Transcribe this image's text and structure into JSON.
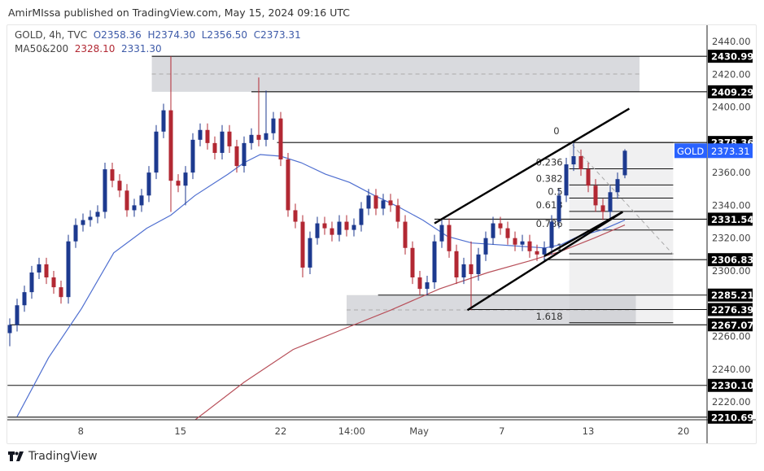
{
  "header": {
    "published": "AmirMIssa published on TradingView.com, May 15, 2024 09:16 UTC"
  },
  "legend": {
    "symbol": "GOLD, 4h, TVC",
    "open": "O2358.36",
    "high": "H2374.30",
    "low": "L2356.50",
    "close": "C2373.31",
    "ma_label": "MA50&200",
    "ma50": "2328.10",
    "ma200": "2331.30"
  },
  "footer": {
    "brand": "TradingView",
    "logo_icon": "tradingview-logo-icon"
  },
  "colors": {
    "up": "#1d3a8f",
    "down": "#b22833",
    "ma50": "#4f6fd0",
    "ma200": "#b8505a",
    "price_tag": "#2962ff"
  },
  "chart_data": {
    "type": "candlestick",
    "symbol": "GOLD",
    "timeframe": "4h",
    "ylim": [
      2205,
      2450
    ],
    "y_ticks": [
      "2440.00",
      "2420.00",
      "2400.00",
      "2360.00",
      "2340.00",
      "2320.00",
      "2300.00",
      "2260.00",
      "2240.00",
      "2220.00"
    ],
    "x_ticks": [
      {
        "label": "8",
        "i": 9.7
      },
      {
        "label": "15",
        "i": 23.3
      },
      {
        "label": "22",
        "i": 37
      },
      {
        "label": "14:00",
        "i": 46.7
      },
      {
        "label": "May",
        "i": 55.9
      },
      {
        "label": "7",
        "i": 67.2
      },
      {
        "label": "13",
        "i": 79
      },
      {
        "label": "20",
        "i": 92
      }
    ],
    "last_price": {
      "label": "GOLD",
      "value": "2373.31",
      "price": 2373.31
    },
    "candles": [
      [
        2262,
        2271,
        2254,
        2267
      ],
      [
        2267,
        2283,
        2263,
        2279
      ],
      [
        2279,
        2291,
        2275,
        2287
      ],
      [
        2287,
        2303,
        2283,
        2299
      ],
      [
        2299,
        2308,
        2295,
        2304
      ],
      [
        2304,
        2308,
        2292,
        2296
      ],
      [
        2296,
        2300,
        2286,
        2290
      ],
      [
        2290,
        2294,
        2280,
        2284
      ],
      [
        2284,
        2322,
        2280,
        2318
      ],
      [
        2318,
        2332,
        2314,
        2328
      ],
      [
        2328,
        2335,
        2324,
        2331
      ],
      [
        2331,
        2337,
        2327,
        2333
      ],
      [
        2333,
        2340,
        2329,
        2336
      ],
      [
        2336,
        2366,
        2332,
        2362
      ],
      [
        2362,
        2366,
        2351,
        2355
      ],
      [
        2355,
        2359,
        2345,
        2349
      ],
      [
        2349,
        2353,
        2333,
        2337
      ],
      [
        2337,
        2344,
        2333,
        2340
      ],
      [
        2340,
        2350,
        2336,
        2346
      ],
      [
        2346,
        2364,
        2342,
        2360
      ],
      [
        2360,
        2389,
        2356,
        2385
      ],
      [
        2385,
        2402,
        2381,
        2398
      ],
      [
        2398,
        2431,
        2336,
        2355
      ],
      [
        2355,
        2359,
        2348,
        2352
      ],
      [
        2352,
        2364,
        2340,
        2360
      ],
      [
        2360,
        2384,
        2356,
        2380
      ],
      [
        2380,
        2390,
        2376,
        2386
      ],
      [
        2386,
        2390,
        2374,
        2378
      ],
      [
        2378,
        2382,
        2368,
        2372
      ],
      [
        2372,
        2389,
        2368,
        2385
      ],
      [
        2385,
        2389,
        2372,
        2376
      ],
      [
        2376,
        2380,
        2360,
        2364
      ],
      [
        2364,
        2382,
        2360,
        2378
      ],
      [
        2378,
        2387,
        2374,
        2383
      ],
      [
        2383,
        2418,
        2376,
        2380
      ],
      [
        2380,
        2410,
        2376,
        2384
      ],
      [
        2384,
        2397,
        2380,
        2393
      ],
      [
        2393,
        2397,
        2364,
        2368
      ],
      [
        2368,
        2372,
        2333,
        2337
      ],
      [
        2337,
        2341,
        2326,
        2330
      ],
      [
        2330,
        2334,
        2296,
        2302
      ],
      [
        2302,
        2324,
        2298,
        2320
      ],
      [
        2320,
        2333,
        2316,
        2329
      ],
      [
        2329,
        2333,
        2322,
        2326
      ],
      [
        2326,
        2330,
        2318,
        2322
      ],
      [
        2322,
        2334,
        2318,
        2330
      ],
      [
        2330,
        2334,
        2321,
        2325
      ],
      [
        2325,
        2332,
        2321,
        2328
      ],
      [
        2328,
        2342,
        2324,
        2338
      ],
      [
        2338,
        2350,
        2334,
        2346
      ],
      [
        2346,
        2350,
        2334,
        2338
      ],
      [
        2338,
        2347,
        2334,
        2343
      ],
      [
        2343,
        2347,
        2336,
        2340
      ],
      [
        2340,
        2344,
        2326,
        2330
      ],
      [
        2330,
        2334,
        2310,
        2314
      ],
      [
        2314,
        2318,
        2292,
        2296
      ],
      [
        2296,
        2300,
        2285,
        2289
      ],
      [
        2289,
        2297,
        2285,
        2293
      ],
      [
        2293,
        2322,
        2289,
        2318
      ],
      [
        2318,
        2332,
        2314,
        2328
      ],
      [
        2328,
        2332,
        2308,
        2312
      ],
      [
        2312,
        2316,
        2292,
        2296
      ],
      [
        2296,
        2308,
        2292,
        2304
      ],
      [
        2304,
        2318,
        2276,
        2298
      ],
      [
        2298,
        2314,
        2294,
        2310
      ],
      [
        2310,
        2324,
        2306,
        2320
      ],
      [
        2320,
        2333,
        2316,
        2329
      ],
      [
        2329,
        2333,
        2322,
        2326
      ],
      [
        2326,
        2330,
        2316,
        2320
      ],
      [
        2320,
        2324,
        2312,
        2316
      ],
      [
        2316,
        2322,
        2312,
        2318
      ],
      [
        2318,
        2322,
        2308,
        2312
      ],
      [
        2312,
        2316,
        2306,
        2310
      ],
      [
        2310,
        2318,
        2306,
        2314
      ],
      [
        2314,
        2334,
        2310,
        2330
      ],
      [
        2330,
        2350,
        2326,
        2346
      ],
      [
        2346,
        2369,
        2342,
        2365
      ],
      [
        2365,
        2378,
        2361,
        2370
      ],
      [
        2370,
        2374,
        2358,
        2362
      ],
      [
        2362,
        2366,
        2348,
        2352
      ],
      [
        2352,
        2356,
        2336,
        2340
      ],
      [
        2340,
        2344,
        2331,
        2336
      ],
      [
        2336,
        2352,
        2332,
        2348
      ],
      [
        2348,
        2360,
        2344,
        2356
      ],
      [
        2358.36,
        2374.3,
        2356.5,
        2373.31
      ]
    ],
    "ma50": [
      [
        1,
        2211
      ],
      [
        5.3,
        2247
      ],
      [
        9.8,
        2277
      ],
      [
        14.2,
        2311
      ],
      [
        18.7,
        2326
      ],
      [
        22,
        2334
      ],
      [
        25.3,
        2346
      ],
      [
        29.8,
        2359
      ],
      [
        32,
        2366
      ],
      [
        34.2,
        2371
      ],
      [
        37,
        2370
      ],
      [
        39.8,
        2366
      ],
      [
        43.1,
        2359
      ],
      [
        46.4,
        2354
      ],
      [
        49.8,
        2346
      ],
      [
        53.1,
        2339
      ],
      [
        56.4,
        2331
      ],
      [
        59.8,
        2321
      ],
      [
        63.1,
        2317
      ],
      [
        66.4,
        2316
      ],
      [
        69.8,
        2315
      ],
      [
        73.1,
        2314
      ],
      [
        75.3,
        2316
      ],
      [
        77.6,
        2321
      ],
      [
        80.9,
        2325
      ],
      [
        84,
        2331
      ]
    ],
    "ma200": [
      [
        25.3,
        2209
      ],
      [
        32,
        2232
      ],
      [
        38.7,
        2252
      ],
      [
        45.3,
        2264
      ],
      [
        52,
        2276
      ],
      [
        58.7,
        2289
      ],
      [
        65.3,
        2299
      ],
      [
        70.9,
        2306
      ],
      [
        75.3,
        2312
      ],
      [
        79.8,
        2320
      ],
      [
        84,
        2328
      ]
    ],
    "levels": [
      {
        "label": "2430.99",
        "price": 2430.99,
        "from": 19.4
      },
      {
        "label": "2409.29",
        "price": 2409.29,
        "from": 33
      },
      {
        "label": "2378.36",
        "price": 2378.36,
        "from": 36.5
      },
      {
        "label": "2331.54",
        "price": 2331.54,
        "from": 58
      },
      {
        "label": "2306.83",
        "price": 2306.83,
        "from": 73
      },
      {
        "label": "2285.21",
        "price": 2285.21,
        "from": 50.3
      },
      {
        "label": "2276.39",
        "price": 2276.39,
        "from": 62.5
      },
      {
        "label": "2267.07",
        "price": 2267.07,
        "from": 0
      },
      {
        "label": "2230.10",
        "price": 2230.1,
        "from": -0.3
      },
      {
        "label": "2210.69",
        "price": 2210.69,
        "from": -0.3
      }
    ],
    "zones": [
      {
        "top": 2430.99,
        "bottom": 2409.29,
        "from": 19.4,
        "to": 86
      },
      {
        "top": 2285.21,
        "bottom": 2267.07,
        "from": 46,
        "to": 85.5
      }
    ],
    "fibonacci": {
      "from": 76.4,
      "to": 90.6,
      "levels": [
        {
          "label": "0",
          "price": 2378.36
        },
        {
          "label": "0.236",
          "price": 2362.3
        },
        {
          "label": "0.382",
          "price": 2352.4
        },
        {
          "label": "0.5",
          "price": 2344.4
        },
        {
          "label": "0.618",
          "price": 2336.3
        },
        {
          "label": "0.786",
          "price": 2324.9
        },
        {
          "label": "1",
          "price": 2310.4
        },
        {
          "label": "1.618",
          "price": 2268.3
        }
      ]
    },
    "trendlines": [
      {
        "p1": [
          58,
          2329
        ],
        "p2": [
          84.6,
          2399
        ]
      },
      {
        "p1": [
          62.5,
          2276
        ],
        "p2": [
          83.7,
          2336
        ]
      },
      {
        "p1": [
          73,
          2309
        ],
        "p2": [
          83.7,
          2336
        ]
      }
    ],
    "dashed_line": {
      "p1": [
        76.8,
        2377
      ],
      "p2": [
        90.6,
        2310
      ]
    }
  }
}
